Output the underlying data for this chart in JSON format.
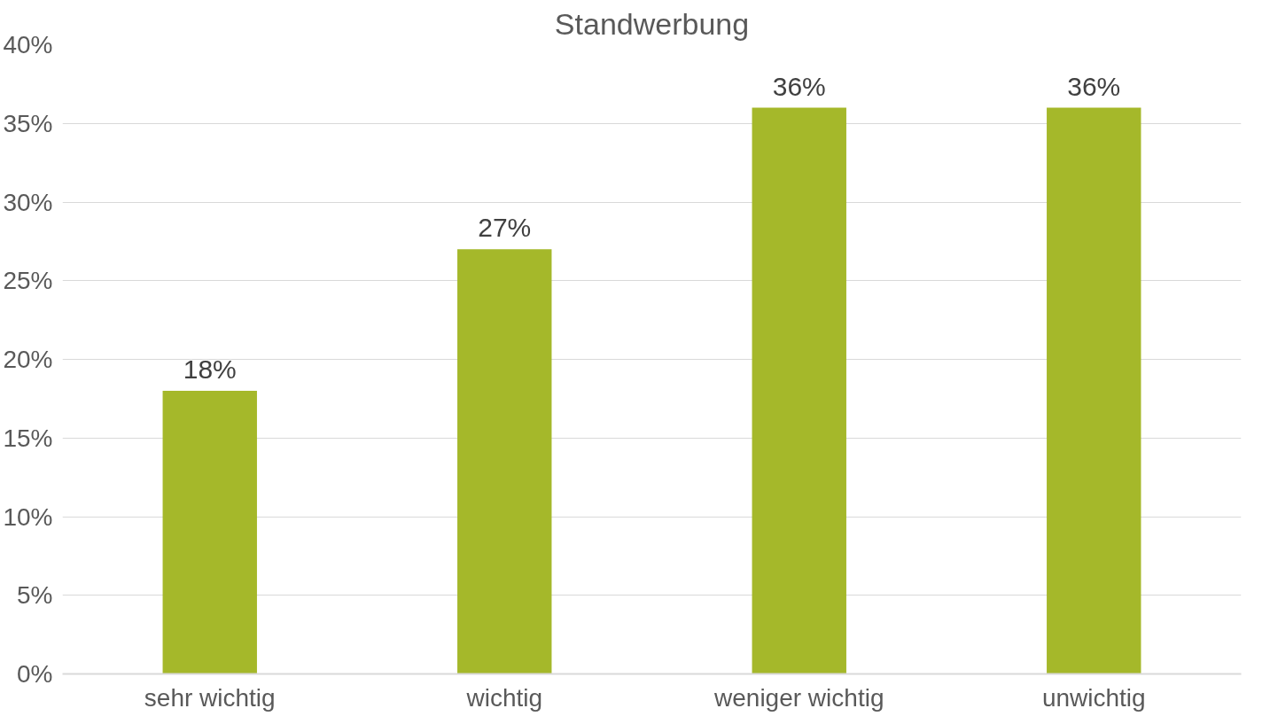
{
  "chart_data": {
    "type": "bar",
    "title": "Standwerbung",
    "categories": [
      "sehr wichtig",
      "wichtig",
      "weniger wichtig",
      "unwichtig"
    ],
    "values": [
      18,
      27,
      36,
      36
    ],
    "value_labels": [
      "18%",
      "27%",
      "36%",
      "36%"
    ],
    "color": "#a5b82a",
    "ylim": [
      0,
      40
    ],
    "yticks": [
      {
        "value": 0,
        "label": "0%"
      },
      {
        "value": 5,
        "label": "5%"
      },
      {
        "value": 10,
        "label": "10%"
      },
      {
        "value": 15,
        "label": "15%"
      },
      {
        "value": 20,
        "label": "20%"
      },
      {
        "value": 25,
        "label": "25%"
      },
      {
        "value": 30,
        "label": "30%"
      },
      {
        "value": 35,
        "label": "35%"
      },
      {
        "value": 40,
        "label": "40%"
      }
    ],
    "grid": "y"
  }
}
